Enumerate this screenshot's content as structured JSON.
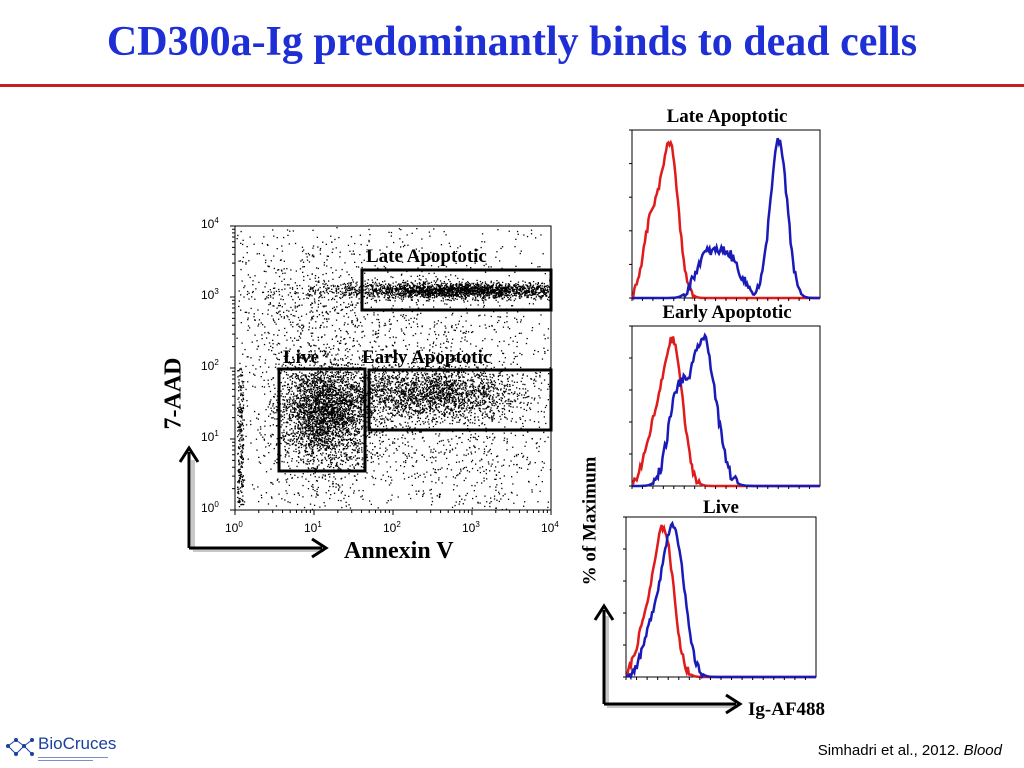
{
  "title": "CD300a-Ig predominantly binds to dead cells",
  "dot_plot": {
    "x_axis_title": "Annexin V",
    "y_axis_title": "7-AAD",
    "x_ticks": [
      {
        "base": "10",
        "exp": "0"
      },
      {
        "base": "10",
        "exp": "1"
      },
      {
        "base": "10",
        "exp": "2"
      },
      {
        "base": "10",
        "exp": "3"
      },
      {
        "base": "10",
        "exp": "4"
      }
    ],
    "y_ticks": [
      {
        "base": "10",
        "exp": "0"
      },
      {
        "base": "10",
        "exp": "1"
      },
      {
        "base": "10",
        "exp": "2"
      },
      {
        "base": "10",
        "exp": "3"
      },
      {
        "base": "10",
        "exp": "4"
      }
    ],
    "gates": {
      "late": "Late Apoptotic",
      "early": "Early Apoptotic",
      "live": "Live"
    }
  },
  "histograms": {
    "y_axis_title": "% of Maximum",
    "x_axis_title": "Ig-AF488",
    "panels": [
      {
        "title": "Late Apoptotic"
      },
      {
        "title": "Early Apoptotic"
      },
      {
        "title": "Live"
      }
    ],
    "colors": {
      "control": "#e01b1b",
      "cd300a": "#1a1ab8"
    }
  },
  "citation": {
    "text": "Simhadri et al., 2012.",
    "journal": "Blood"
  },
  "logo": {
    "name": "BioCruces"
  }
}
